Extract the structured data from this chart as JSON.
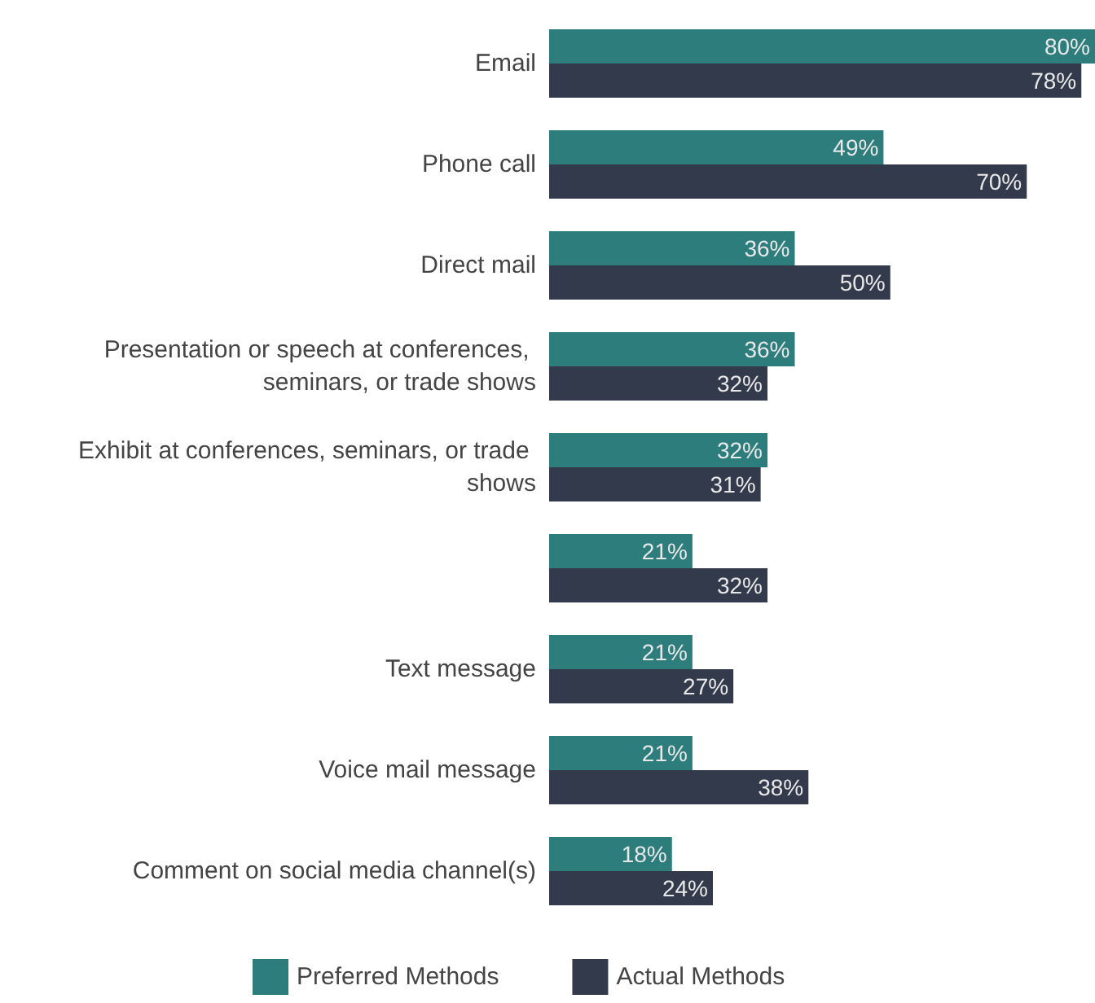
{
  "chart_data": {
    "type": "bar",
    "orientation": "horizontal",
    "categories": [
      "Email",
      "Phone call",
      "Direct mail",
      "Presentation or speech at conferences, seminars, or trade shows",
      "Exhibit at conferences, seminars, or trade shows",
      null,
      "Text message",
      "Voice mail message",
      "Comment on social media channel(s)"
    ],
    "series": [
      {
        "name": "Preferred Methods",
        "color": "#2e7d7d",
        "values": [
          80,
          49,
          36,
          36,
          32,
          21,
          21,
          21,
          18
        ],
        "value_labels": [
          "80%",
          "49%",
          "36%",
          "36%",
          "32%",
          "21%",
          "21%",
          "21%",
          "18%"
        ]
      },
      {
        "name": "Actual Methods",
        "color": "#333a4b",
        "values": [
          78,
          70,
          50,
          32,
          31,
          32,
          27,
          38,
          24
        ],
        "value_labels": [
          "78%",
          "70%",
          "50%",
          "32%",
          "31%",
          "32%",
          "27%",
          "38%",
          "24%"
        ]
      }
    ],
    "xlim": [
      0,
      80
    ],
    "tick_labels": "y",
    "grid": false,
    "legend": "bottom"
  }
}
